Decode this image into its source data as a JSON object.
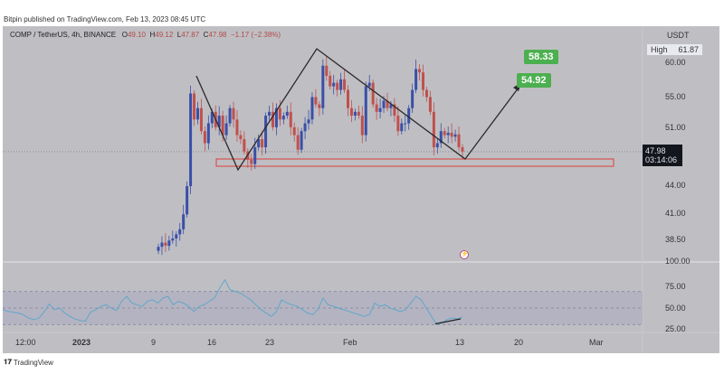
{
  "publisher": "Bitpin published on TradingView.com, Feb 13, 2023 08:45 UTC",
  "legend": {
    "symbol": "COMP / TetherUS, 4h, BINANCE",
    "o_label": "O",
    "o": "49.10",
    "h_label": "H",
    "h": "49.12",
    "l_label": "L",
    "l": "47.87",
    "c_label": "C",
    "c": "47.98",
    "change": "−1.17 (−2.38%)"
  },
  "price_axis": {
    "unit": "USDT",
    "high_label": "High",
    "high_value": "61.87",
    "ticks": [
      "60.00",
      "55.00",
      "51.00",
      "44.00",
      "41.00",
      "38.50"
    ],
    "last_price": "47.98",
    "countdown": "03:14:06"
  },
  "rsi_axis": {
    "ticks": [
      "100.00",
      "75.00",
      "50.00",
      "25.00"
    ]
  },
  "time_axis": [
    "12:00",
    "2023",
    "9",
    "16",
    "23",
    "Feb",
    "13",
    "20",
    "Mar"
  ],
  "targets": [
    "58.33",
    "54.92"
  ],
  "watermark": "TradingView",
  "colors": {
    "up": "#3a4fa8",
    "down": "#c0504d",
    "rsi": "#5fa8c8",
    "pattern": "#2a2a2a",
    "zone": "#d9534f",
    "target": "#4caf50"
  },
  "chart_data": {
    "type": "candlestick",
    "closes": [
      37.8,
      38.2,
      37.9,
      38.4,
      38.6,
      39.0,
      39.5,
      41.0,
      44.0,
      55.5,
      52.0,
      53.5,
      50.5,
      49.0,
      51.5,
      53.0,
      51.0,
      52.5,
      50.0,
      51.5,
      53.5,
      52.0,
      50.0,
      49.5,
      48.0,
      47.0,
      46.5,
      48.5,
      49.5,
      48.5,
      52.5,
      53.0,
      51.0,
      53.5,
      52.0,
      52.5,
      53.0,
      51.0,
      50.0,
      48.2,
      50.5,
      51.5,
      52.0,
      55.0,
      54.0,
      53.5,
      59.5,
      58.0,
      56.5,
      57.0,
      56.0,
      57.5,
      56.0,
      53.5,
      52.5,
      53.0,
      52.5,
      50.0,
      56.5,
      57.0,
      54.0,
      53.0,
      53.5,
      54.5,
      53.5,
      54.0,
      52.5,
      50.5,
      51.5,
      51.5,
      53.5,
      56.0,
      59.0,
      58.5,
      56.0,
      55.0,
      53.0,
      48.5,
      49.0,
      50.5,
      50.0,
      50.3,
      49.8,
      50.1,
      48.5,
      47.98
    ],
    "rsi": [
      48,
      46,
      45,
      44,
      42,
      38,
      36,
      38,
      45,
      55,
      48,
      50,
      44,
      40,
      37,
      35,
      34,
      45,
      48,
      52,
      54,
      50,
      47,
      58,
      64,
      56,
      54,
      52,
      58,
      60,
      56,
      62,
      64,
      54,
      58,
      56,
      52,
      46,
      52,
      54,
      58,
      62,
      74,
      84,
      72,
      70,
      68,
      64,
      60,
      54,
      48,
      44,
      40,
      46,
      60,
      56,
      54,
      52,
      48,
      44,
      42,
      48,
      62,
      54,
      52,
      50,
      48,
      46,
      44,
      42,
      40,
      42,
      56,
      52,
      54,
      50,
      48,
      46,
      48,
      56,
      64,
      60,
      50,
      40,
      30,
      32,
      36,
      38,
      37,
      39
    ],
    "ylim": [
      38.5,
      60
    ],
    "rsi_levels": [
      70,
      50,
      30
    ]
  }
}
